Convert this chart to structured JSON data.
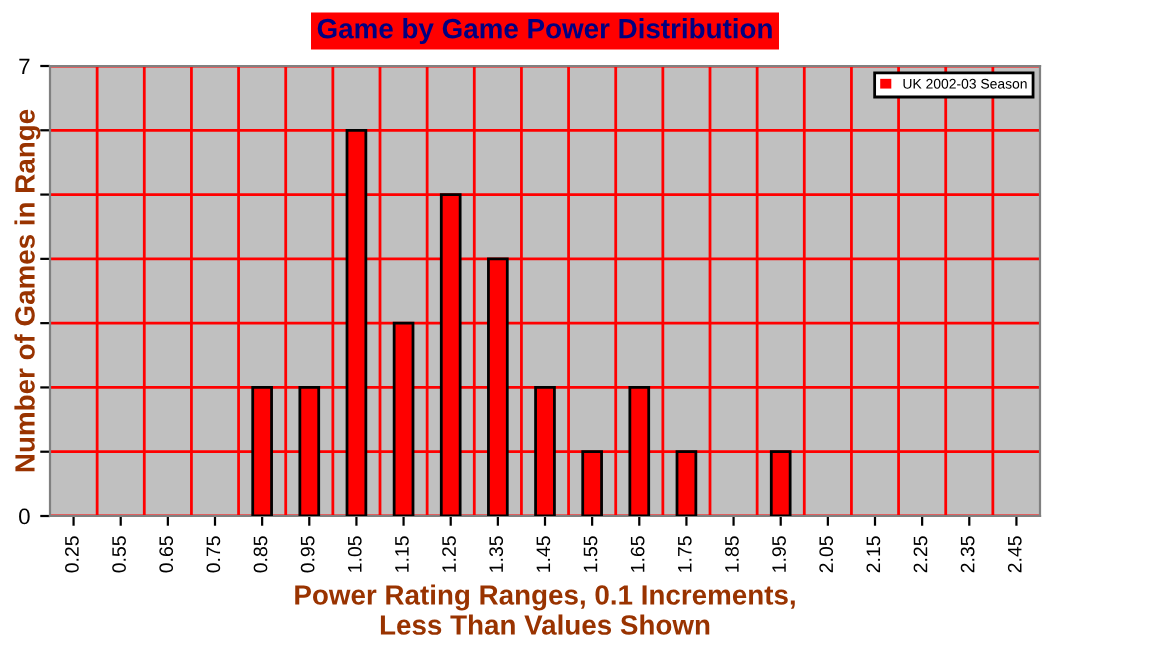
{
  "chart_data": {
    "type": "bar",
    "title": "Game by Game Power Distribution",
    "xlabel": "Power Rating Ranges, 0.1 Increments,\nLess Than Values Shown",
    "ylabel": "Number of Games in Range",
    "categories": [
      "0.25",
      "0.55",
      "0.65",
      "0.75",
      "0.85",
      "0.95",
      "1.05",
      "1.15",
      "1.25",
      "1.35",
      "1.45",
      "1.55",
      "1.65",
      "1.75",
      "1.85",
      "1.95",
      "2.05",
      "2.15",
      "2.25",
      "2.35",
      "2.45"
    ],
    "series": [
      {
        "name": "UK 2002-03 Season",
        "color": "#ff0000",
        "values": [
          0,
          0,
          0,
          0,
          2,
          2,
          6,
          3,
          5,
          4,
          2,
          1,
          2,
          1,
          0,
          1,
          0,
          0,
          0,
          0,
          0
        ]
      }
    ],
    "ylim": [
      0,
      7
    ],
    "yticks": [
      0,
      {
        "value": 1,
        "label": null
      },
      {
        "value": 2,
        "label": null
      },
      {
        "value": 3,
        "label": null
      },
      {
        "value": 4,
        "label": null
      },
      {
        "value": 5,
        "label": null
      },
      {
        "value": 6,
        "label": null
      },
      7
    ],
    "grid": true,
    "legend": "top right"
  }
}
